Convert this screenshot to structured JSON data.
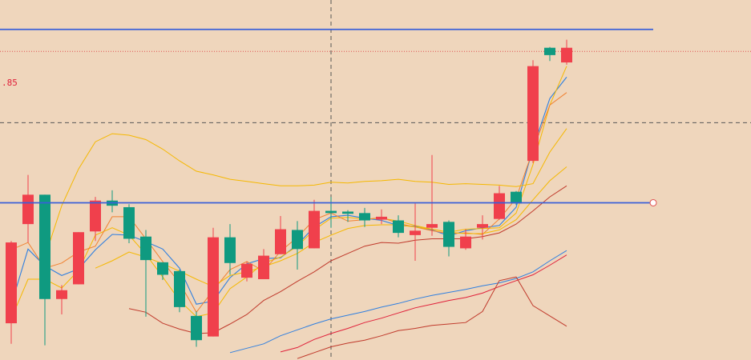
{
  "chart_data": {
    "type": "candlestick",
    "price_label": ".85",
    "colors": {
      "background": "#efd6bc",
      "up": "#f0404c",
      "down": "#0f9a80",
      "hline": "#3a5fd8",
      "price_line": "#e05050",
      "crosshair": "#555555"
    },
    "candles": [
      {
        "o": 1000,
        "c": 1110,
        "h": 1112,
        "l": 972
      },
      {
        "o": 1135,
        "c": 1175,
        "h": 1202,
        "l": 1110
      },
      {
        "o": 1175,
        "c": 1033,
        "h": 1175,
        "l": 970
      },
      {
        "o": 1033,
        "c": 1045,
        "h": 1052,
        "l": 1012
      },
      {
        "o": 1053,
        "c": 1124,
        "h": 1124,
        "l": 1053
      },
      {
        "o": 1125,
        "c": 1167,
        "h": 1172,
        "l": 1112
      },
      {
        "o": 1167,
        "c": 1160,
        "h": 1181,
        "l": 1151
      },
      {
        "o": 1158,
        "c": 1115,
        "h": 1162,
        "l": 1109
      },
      {
        "o": 1118,
        "c": 1086,
        "h": 1127,
        "l": 1009
      },
      {
        "o": 1083,
        "c": 1066,
        "h": 1083,
        "l": 1059
      },
      {
        "o": 1071,
        "c": 1022,
        "h": 1073,
        "l": 1015
      },
      {
        "o": 1010,
        "c": 977,
        "h": 1016,
        "l": 968
      },
      {
        "o": 982,
        "c": 1117,
        "h": 1130,
        "l": 982
      },
      {
        "o": 1117,
        "c": 1082,
        "h": 1135,
        "l": 1066
      },
      {
        "o": 1062,
        "c": 1081,
        "h": 1084,
        "l": 1057
      },
      {
        "o": 1060,
        "c": 1092,
        "h": 1101,
        "l": 1060
      },
      {
        "o": 1094,
        "c": 1128,
        "h": 1146,
        "l": 1094
      },
      {
        "o": 1127,
        "c": 1101,
        "h": 1139,
        "l": 1073
      },
      {
        "o": 1102,
        "c": 1153,
        "h": 1168,
        "l": 1102
      },
      {
        "o": 1153,
        "c": 1150,
        "h": 1172,
        "l": 1130
      },
      {
        "o": 1152,
        "c": 1149,
        "h": 1154,
        "l": 1138
      },
      {
        "o": 1150,
        "c": 1140,
        "h": 1157,
        "l": 1131
      },
      {
        "o": 1141,
        "c": 1145,
        "h": 1155,
        "l": 1135
      },
      {
        "o": 1140,
        "c": 1123,
        "h": 1147,
        "l": 1117
      },
      {
        "o": 1120,
        "c": 1126,
        "h": 1163,
        "l": 1085
      },
      {
        "o": 1130,
        "c": 1135,
        "h": 1229,
        "l": 1119
      },
      {
        "o": 1138,
        "c": 1104,
        "h": 1140,
        "l": 1091
      },
      {
        "o": 1102,
        "c": 1118,
        "h": 1128,
        "l": 1100
      },
      {
        "o": 1130,
        "c": 1135,
        "h": 1147,
        "l": 1114
      },
      {
        "o": 1142,
        "c": 1177,
        "h": 1187,
        "l": 1141
      },
      {
        "o": 1179,
        "c": 1163,
        "h": 1180,
        "l": 1161
      },
      {
        "o": 1221,
        "c": 1350,
        "h": 1358,
        "l": 1218
      },
      {
        "o": 1375,
        "c": 1365,
        "h": 1376,
        "l": 1357
      },
      {
        "o": 1355,
        "c": 1375,
        "h": 1386,
        "l": 1352
      }
    ],
    "indicators": [
      {
        "color": "#2f7fe0",
        "width": 1.1,
        "values": [
          1025,
          1101,
          1078,
          1065,
          1074,
          1100,
          1121,
          1120,
          1111,
          1101,
          1075,
          1026,
          1030,
          1062,
          1081,
          1088,
          1089,
          1107,
          1131,
          1145,
          1147,
          1143,
          1140,
          1133,
          1132,
          1127,
          1119,
          1126,
          1130,
          1133,
          1158,
          1238,
          1306,
          1335
        ]
      },
      {
        "color": "#f5b800",
        "width": 1.0,
        "values": [
          1006,
          1060,
          1060,
          1048,
          1072,
          1120,
          1130,
          1120,
          1094,
          1063,
          1031,
          1009,
          1014,
          1047,
          1063,
          1082,
          1090,
          1105,
          1127,
          1143,
          1144,
          1142,
          1143,
          1139,
          1133,
          1128,
          1124,
          1128,
          1129,
          1130,
          1150,
          1216,
          1297,
          1350
        ]
      },
      {
        "color": "#f08030",
        "width": 1.0,
        "values": [
          1100,
          1110,
          1075,
          1082,
          1097,
          1105,
          1145,
          1145,
          1115,
          1084,
          1055,
          1015,
          1045,
          1073,
          1084,
          1071,
          1098,
          1117,
          1141,
          1150,
          1139,
          1141,
          1144,
          1136,
          1131,
          1126,
          1122,
          1123,
          1121,
          1142,
          1170,
          1236,
          1297,
          1314
        ]
      },
      {
        "color": "#f5b800",
        "width": 1.0,
        "values": [
          null,
          null,
          1090,
          1160,
          1210,
          1247,
          1258,
          1256,
          1250,
          1237,
          1221,
          1207,
          1202,
          1196,
          1193,
          1190,
          1187,
          1187,
          1188,
          1192,
          1191,
          1193,
          1194,
          1196,
          1193,
          1192,
          1189,
          1190,
          1189,
          1188,
          1186,
          1190,
          1233,
          1265
        ]
      },
      {
        "color": "#f5b800",
        "width": 1.0,
        "values": [
          null,
          null,
          null,
          null,
          null,
          1075,
          1085,
          1097,
          1090,
          1081,
          1071,
          1060,
          1050,
          1065,
          1070,
          1077,
          1085,
          1095,
          1110,
          1120,
          1129,
          1133,
          1134,
          1134,
          1131,
          1128,
          1124,
          1122,
          1122,
          1127,
          1141,
          1168,
          1194,
          1213
        ]
      },
      {
        "color": "#c0392b",
        "width": 1.0,
        "values": [
          null,
          null,
          null,
          null,
          null,
          null,
          null,
          1020,
          1015,
          1000,
          992,
          986,
          987,
          999,
          1012,
          1031,
          1043,
          1057,
          1070,
          1085,
          1095,
          1105,
          1110,
          1109,
          1113,
          1115,
          1115,
          1115,
          1118,
          1123,
          1135,
          1153,
          1172,
          1187
        ]
      },
      {
        "color": "#2f7fe0",
        "width": 1.0,
        "values": [
          null,
          null,
          null,
          null,
          null,
          null,
          null,
          null,
          null,
          null,
          null,
          null,
          null,
          960,
          966,
          972,
          983,
          991,
          999,
          1006,
          1011,
          1016,
          1022,
          1027,
          1033,
          1038,
          1042,
          1046,
          1051,
          1055,
          1061,
          1070,
          1085,
          1099
        ]
      },
      {
        "color": "#e0203a",
        "width": 1.0,
        "values": [
          null,
          null,
          null,
          null,
          null,
          null,
          null,
          null,
          null,
          null,
          null,
          null,
          null,
          null,
          null,
          null,
          961,
          967,
          978,
          986,
          993,
          1001,
          1007,
          1014,
          1021,
          1026,
          1031,
          1035,
          1041,
          1050,
          1058,
          1066,
          1079,
          1093
        ]
      },
      {
        "color": "#c0392b",
        "width": 1.0,
        "values": [
          null,
          null,
          null,
          null,
          null,
          null,
          null,
          null,
          null,
          null,
          null,
          null,
          null,
          null,
          null,
          null,
          null,
          952,
          960,
          968,
          973,
          977,
          983,
          990,
          993,
          997,
          999,
          1001,
          1016,
          1058,
          1063,
          1024,
          1010,
          996
        ]
      }
    ],
    "hlines": [
      1400,
      1164
    ],
    "price_level": 1370,
    "crosshair_x_index": 19,
    "crosshair_y": 1273,
    "y_range": [
      950,
      1440
    ],
    "grid": false
  }
}
